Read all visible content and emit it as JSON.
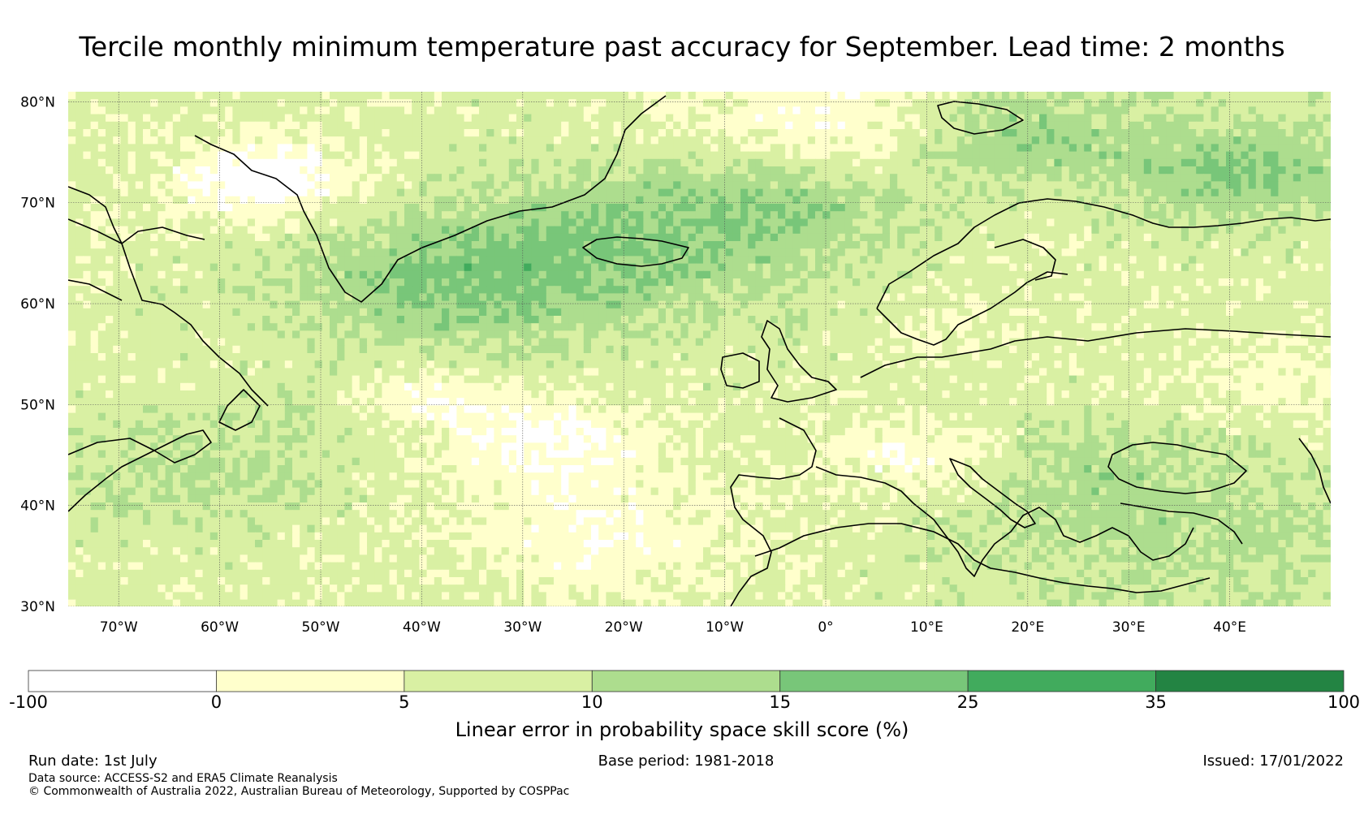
{
  "title": "Tercile monthly minimum temperature past accuracy for September. Lead time: 2 months",
  "map": {
    "lat_labels": [
      "80°N",
      "70°N",
      "60°N",
      "50°N",
      "40°N",
      "30°N"
    ],
    "lon_labels": [
      "70°W",
      "60°W",
      "50°W",
      "40°W",
      "30°W",
      "20°W",
      "10°W",
      "0°",
      "10°E",
      "20°E",
      "30°E",
      "40°E"
    ],
    "lon_range": [
      -75,
      50
    ],
    "lat_range": [
      30,
      81
    ],
    "gridlines": true,
    "coastline_color": "#000000"
  },
  "colorbar": {
    "label": "Linear error in probability space skill score (%)",
    "ticks": [
      "-100",
      "0",
      "5",
      "10",
      "15",
      "25",
      "35",
      "100"
    ],
    "bins": [
      {
        "range": "-100 to 0",
        "color": "#ffffff"
      },
      {
        "range": "0 to 5",
        "color": "#ffffcc"
      },
      {
        "range": "5 to 10",
        "color": "#d9f0a3"
      },
      {
        "range": "10 to 15",
        "color": "#addd8e"
      },
      {
        "range": "15 to 25",
        "color": "#78c679"
      },
      {
        "range": "25 to 35",
        "color": "#41ab5d"
      },
      {
        "range": "35 to 100",
        "color": "#238443"
      }
    ]
  },
  "footer": {
    "run_date": "Run date: 1st July",
    "base_period": "Base period: 1981-2018",
    "issued": "Issued: 17/01/2022",
    "data_source": "Data source: ACCESS-S2 and ERA5 Climate Reanalysis",
    "copyright": "© Commonwealth of Australia 2022, Australian Bureau of Meteorology, Supported by COSPPac"
  }
}
